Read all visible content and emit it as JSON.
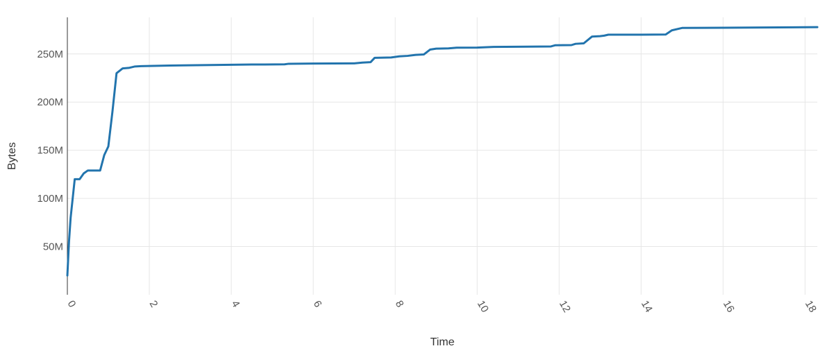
{
  "chart_data": {
    "type": "line",
    "title": "",
    "xlabel": "Time",
    "ylabel": "Bytes",
    "xlim": [
      0,
      18.3
    ],
    "ylim": [
      0,
      288000000
    ],
    "x_ticks": [
      0,
      2,
      4,
      6,
      8,
      10,
      12,
      14,
      16,
      18
    ],
    "x_tick_labels": [
      "0",
      "2",
      "4",
      "6",
      "8",
      "10",
      "12",
      "14",
      "16",
      "18"
    ],
    "y_ticks": [
      50000000,
      100000000,
      150000000,
      200000000,
      250000000
    ],
    "y_tick_labels": [
      "50M",
      "100M",
      "150M",
      "200M",
      "250M"
    ],
    "grid": true,
    "colors": {
      "line": "#2274ad"
    },
    "series": [
      {
        "x": [
          0.0,
          0.04,
          0.08,
          0.18,
          0.3,
          0.4,
          0.5,
          0.6,
          0.7,
          0.8,
          0.9,
          1.0,
          1.1,
          1.2,
          1.35,
          1.5,
          1.65,
          1.8,
          2.5,
          3.5,
          4.5,
          5.3,
          5.4,
          6.0,
          7.0,
          7.2,
          7.4,
          7.5,
          7.9,
          8.1,
          8.3,
          8.5,
          8.7,
          8.85,
          9.0,
          9.3,
          9.5,
          10.0,
          10.4,
          11.0,
          11.8,
          11.9,
          12.3,
          12.4,
          12.6,
          12.8,
          13.0,
          13.1,
          13.2,
          14.0,
          14.6,
          14.75,
          15.0,
          16.0,
          17.0,
          18.3
        ],
        "y": [
          20000000,
          55000000,
          80000000,
          120000000,
          120000000,
          126000000,
          129000000,
          129000000,
          129000000,
          129000000,
          145000000,
          154000000,
          190000000,
          230000000,
          235000000,
          235500000,
          237000000,
          237300000,
          238000000,
          238500000,
          239000000,
          239200000,
          239800000,
          240000000,
          240200000,
          241000000,
          241500000,
          246000000,
          246300000,
          247500000,
          248000000,
          249000000,
          249500000,
          254500000,
          255500000,
          255800000,
          256500000,
          256600000,
          257300000,
          257500000,
          257800000,
          259000000,
          259200000,
          260500000,
          261000000,
          268000000,
          268500000,
          269000000,
          270000000,
          270000000,
          270200000,
          274500000,
          277000000,
          277200000,
          277500000,
          277800000
        ]
      }
    ]
  }
}
